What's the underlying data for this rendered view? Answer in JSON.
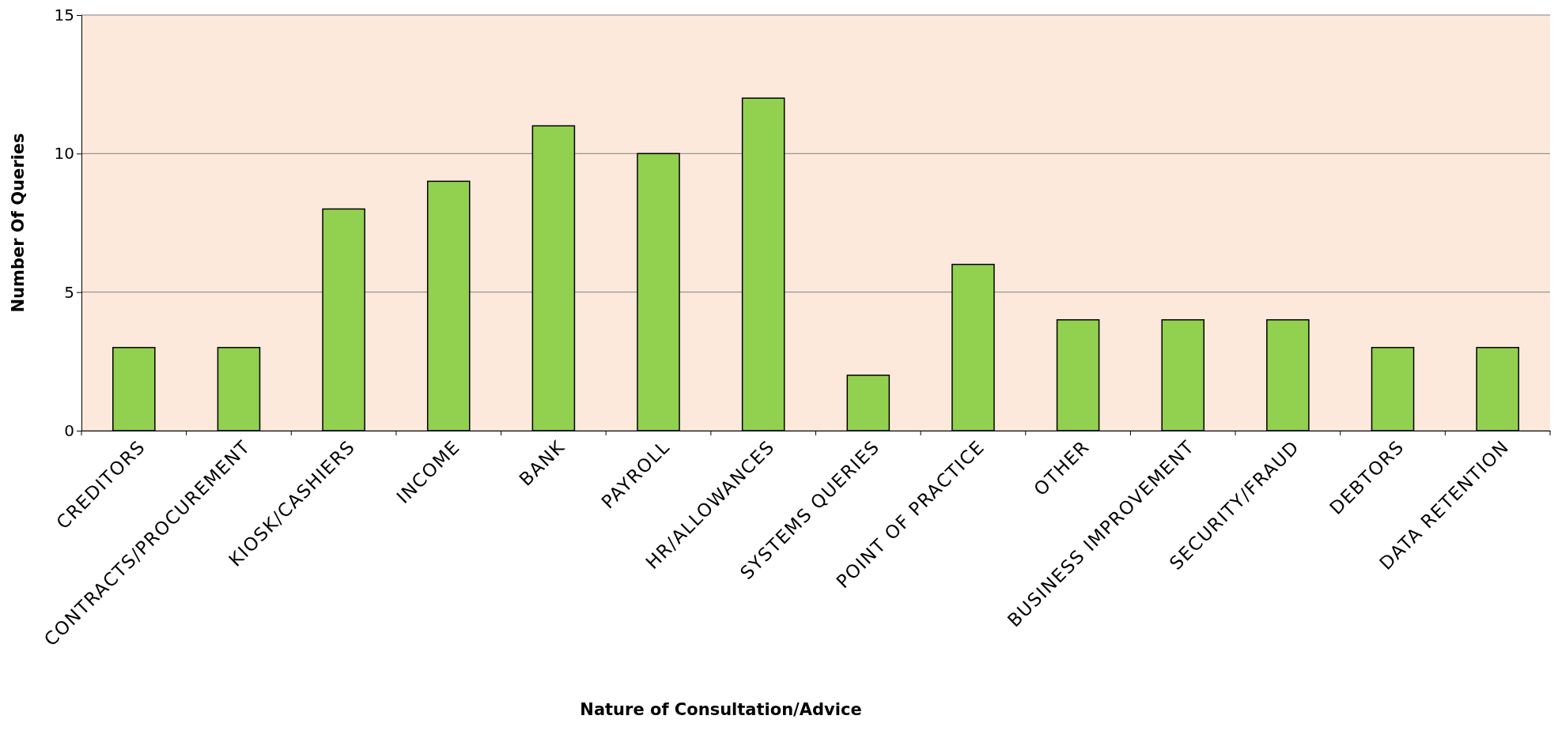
{
  "chart_data": {
    "type": "bar",
    "xlabel": "Nature of Consultation/Advice",
    "ylabel": "Number Of Queries",
    "categories": [
      "CREDITORS",
      "CONTRACTS/PROCUREMENT",
      "KIOSK/CASHIERS",
      "INCOME",
      "BANK",
      "PAYROLL",
      "HR/ALLOWANCES",
      "SYSTEMS QUERIES",
      "POINT OF PRACTICE",
      "OTHER",
      "BUSINESS IMPROVEMENT",
      "SECURITY/FRAUD",
      "DEBTORS",
      "DATA RETENTION"
    ],
    "values": [
      3,
      3,
      8,
      9,
      11,
      10,
      12,
      2,
      6,
      4,
      4,
      4,
      3,
      3
    ],
    "color": "#92d050",
    "ylim": [
      0,
      15
    ],
    "yticks": [
      0,
      5,
      10,
      15
    ],
    "grid": "y"
  }
}
